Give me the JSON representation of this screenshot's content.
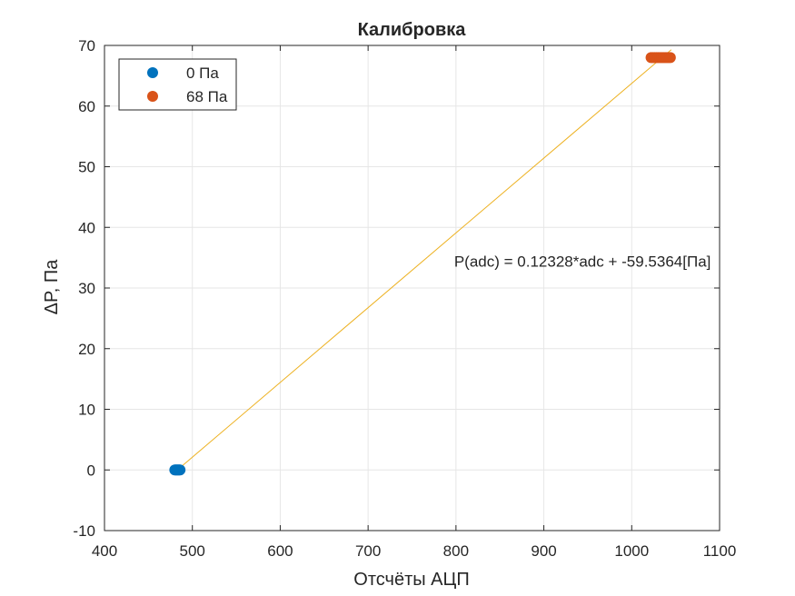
{
  "chart_data": {
    "type": "scatter",
    "title": "Калибровка",
    "xlabel": "Отсчёты АЦП",
    "ylabel": "ΔP, Па",
    "xlim": [
      400,
      1100
    ],
    "ylim": [
      -10,
      70
    ],
    "xticks": [
      400,
      500,
      600,
      700,
      800,
      900,
      1000,
      1100
    ],
    "yticks": [
      -10,
      0,
      10,
      20,
      30,
      40,
      50,
      60,
      70
    ],
    "grid": true,
    "legend": {
      "location": "top-left"
    },
    "series": [
      {
        "name": "0 Па",
        "marker": "filled-circle",
        "color": "#0072BD",
        "x": [
          480,
          481,
          482,
          483,
          484,
          485,
          486
        ],
        "y": [
          0,
          0,
          0,
          0,
          0,
          0,
          0
        ]
      },
      {
        "name": "68 Па",
        "marker": "filled-circle",
        "color": "#D95319",
        "x": [
          1022,
          1024,
          1026,
          1028,
          1030,
          1032,
          1034,
          1036,
          1038,
          1040,
          1042,
          1044
        ],
        "y": [
          68,
          68,
          68,
          68,
          68,
          68,
          68,
          68,
          68,
          68,
          68,
          68
        ]
      }
    ],
    "fit_line": {
      "color": "#EDB120",
      "slope": 0.12328,
      "intercept": -59.5364,
      "x_range": [
        483,
        1045
      ]
    },
    "annotation": {
      "text": "P(adc) = 0.12328*adc + -59.5364[Па]",
      "x": 800,
      "y": 33.5
    }
  }
}
